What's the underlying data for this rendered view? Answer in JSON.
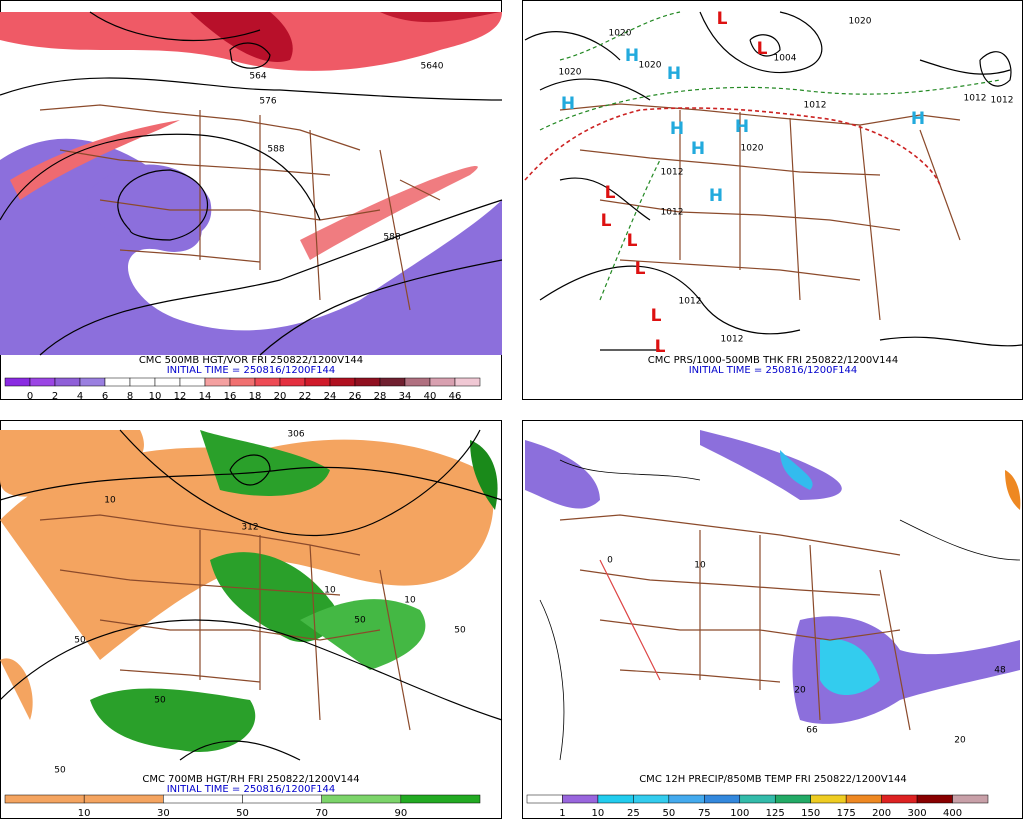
{
  "panels": [
    {
      "caption": "CMC 500MB HGT/VOR FRI 250822/1200V144",
      "initial_time": "INITIAL TIME = 250816/1200F144",
      "legend": {
        "labels": [
          "0",
          "2",
          "4",
          "6",
          "8",
          "10",
          "12",
          "14",
          "16",
          "18",
          "20",
          "22",
          "24",
          "26",
          "28",
          "34",
          "40",
          "46"
        ],
        "colors": [
          "#8a2be2",
          "#9b45e4",
          "#8f5fd8",
          "#9a7fe0",
          "#ffffff",
          "#ffffff",
          "#ffffff",
          "#ffffff",
          "#f4a0a0",
          "#f07070",
          "#ee4b55",
          "#e43040",
          "#d01a2a",
          "#b01020",
          "#901020",
          "#702030",
          "#b07080",
          "#d8a0b0",
          "#f0c8d4"
        ]
      },
      "contour_labels": [
        "564",
        "5640",
        "576",
        "588",
        "588"
      ],
      "symbols": []
    },
    {
      "caption": "CMC PRS/1000-500MB THK FRI 250822/1200V144",
      "initial_time": "INITIAL TIME = 250816/1200F144",
      "contour_labels": [
        "1020",
        "1020",
        "1020",
        "1020",
        "1004",
        "1012",
        "1012",
        "1012",
        "1012",
        "1012",
        "1020",
        "1012",
        "1012"
      ],
      "symbols": [
        "H",
        "H",
        "H",
        "H",
        "H",
        "H",
        "H",
        "H",
        "L",
        "L",
        "L",
        "L",
        "L",
        "L",
        "L",
        "L"
      ]
    },
    {
      "caption": "CMC 700MB HGT/RH FRI 250822/1200V144",
      "initial_time": "INITIAL TIME = 250816/1200F144",
      "legend": {
        "labels": [
          "10",
          "30",
          "50",
          "70",
          "90"
        ],
        "colors": [
          "#f4a460",
          "#f4a460",
          "#ffffff",
          "#ffffff",
          "#7cd46a",
          "#22aa22"
        ]
      },
      "contour_labels": [
        "306",
        "312",
        "10",
        "10",
        "50",
        "50",
        "50",
        "50",
        "10",
        "50"
      ],
      "symbols": []
    },
    {
      "caption": "CMC 12H PRECIP/850MB TEMP FRI 250822/1200V144",
      "legend": {
        "labels": [
          "1",
          "10",
          "25",
          "50",
          "75",
          "100",
          "125",
          "150",
          "175",
          "200",
          "300",
          "400"
        ],
        "colors": [
          "#ffffff",
          "#9966dd",
          "#22ccee",
          "#33ccee",
          "#44aaee",
          "#3388dd",
          "#33bbaa",
          "#22aa66",
          "#eecc22",
          "#ee8822",
          "#dd2222",
          "#880000",
          "#c8a0a8"
        ]
      },
      "contour_labels": [
        "0",
        "10",
        "20",
        "20",
        "66",
        "48"
      ],
      "symbols": []
    }
  ]
}
